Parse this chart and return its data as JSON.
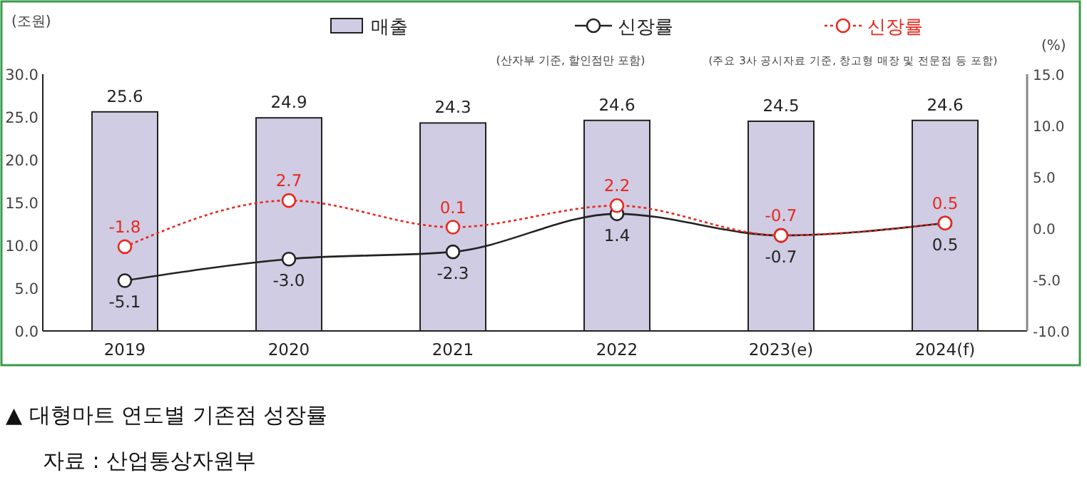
{
  "chart_data": {
    "type": "bar",
    "title": "▲ 대형마트 연도별 기존점 성장률",
    "ylabel": "(조원)",
    "y2label": "(%)",
    "annotations": [
      "(산자부 기준, 할인점만 포함)",
      "(주요 3사 공시자료 기준, 창고형 매장 및 전문점 등 포함)",
      "자료 : 산업통상자원부"
    ],
    "categories": [
      "2019",
      "2020",
      "2021",
      "2022",
      "2023(e)",
      "2024(f)"
    ],
    "series": [
      {
        "name": "매출",
        "color": "#cfcce3",
        "values": [
          25.6,
          24.9,
          24.3,
          24.6,
          24.5,
          24.6
        ]
      },
      {
        "name": "신장률",
        "type": "line",
        "axis": "y2",
        "color": "#222222",
        "line_style": "solid",
        "values": [
          -5.1,
          -3.0,
          -2.3,
          1.4,
          -0.7,
          0.5
        ],
        "value_labels": [
          "-5.1",
          "-3.0",
          "-2.3",
          "1.4",
          "-0.7",
          "0.5"
        ]
      },
      {
        "name": "신장률",
        "type": "line",
        "axis": "y2",
        "color": "#e8281e",
        "line_style": "dotted",
        "values": [
          -1.8,
          2.7,
          0.1,
          2.2,
          -0.7,
          0.5
        ],
        "value_labels": [
          "-1.8",
          "2.7",
          "0.1",
          "2.2",
          "-0.7",
          "0.5"
        ]
      }
    ],
    "ylim": [
      0,
      30
    ],
    "yticks": [
      {
        "value": 0,
        "label": "0.0"
      },
      {
        "value": 5,
        "label": "5.0"
      },
      {
        "value": 10,
        "label": "10.0"
      },
      {
        "value": 15,
        "label": "15.0"
      },
      {
        "value": 20,
        "label": "20.0"
      },
      {
        "value": 25,
        "label": "25.0"
      },
      {
        "value": 30,
        "label": "30.0"
      }
    ],
    "y2lim": [
      -10,
      15
    ],
    "y2ticks": [
      {
        "value": -10,
        "label": "-10.0"
      },
      {
        "value": -5,
        "label": "-5.0"
      },
      {
        "value": 0,
        "label": "0.0"
      },
      {
        "value": 5,
        "label": "5.0"
      },
      {
        "value": 10,
        "label": "10.0"
      },
      {
        "value": 15,
        "label": "15.0"
      }
    ],
    "marker": "circle",
    "data_labels": true,
    "legend": "top",
    "grid": false
  }
}
